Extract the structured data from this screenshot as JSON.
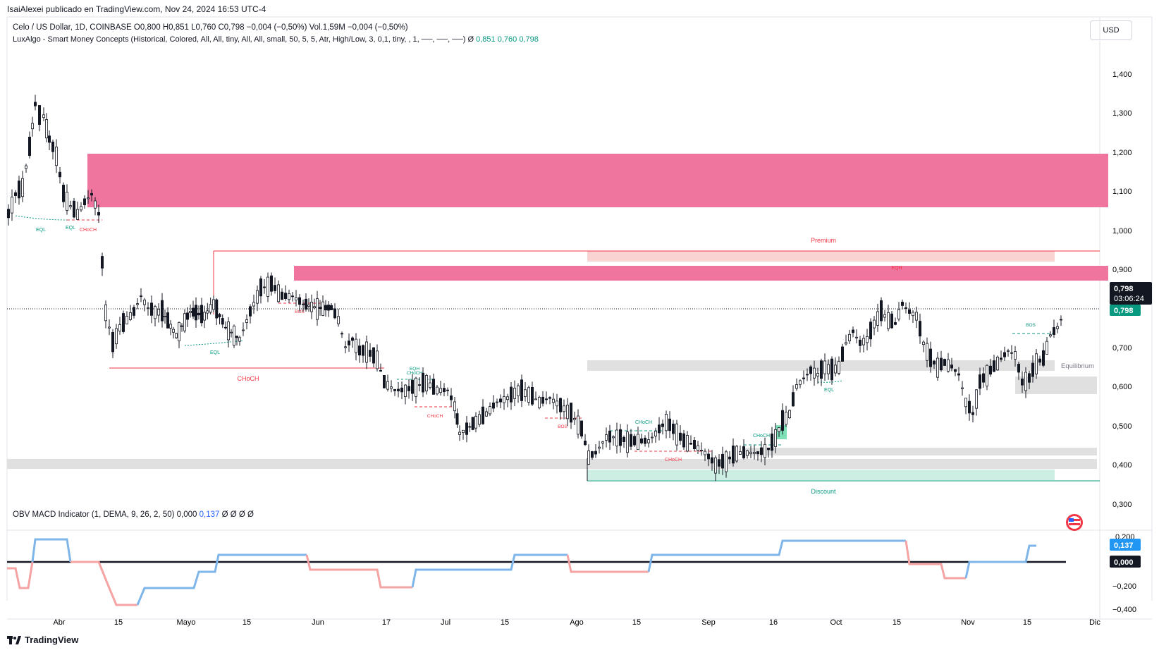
{
  "header": {
    "published": "IsaiAlexei publicado en TradingView.com, Nov 24, 2024 16:53 UTC-4",
    "symbol_line": "Celo / US Dollar, 1D, COINBASE  O0,800  H0,851  L0,760  C0,798  −0,004 (−0,50%)  Vol.1,59M  −0,004 (−0,50%)",
    "indicator_name": "LuxAlgo - Smart Money Concepts (Historical, Colored, All, All, tiny, All, All, small, 50, 5, 5, Atr, High/Low, 3, 0,1, tiny, , 1, ──, ──, ──)  Ø",
    "indicator_values": [
      "0,851",
      "0,760",
      "0,798"
    ],
    "currency_button": "USD"
  },
  "price_axis": {
    "ticks": [
      "1,400",
      "1,300",
      "1,200",
      "1,100",
      "1,000",
      "0,900",
      "0,800",
      "0,700",
      "0,600",
      "0,500",
      "0,400",
      "0,300"
    ],
    "last_price": "0,798",
    "countdown": "03:06:24",
    "close_badge": "0,798"
  },
  "time_axis": {
    "ticks": [
      "Abr",
      "15",
      "Mayo",
      "15",
      "Jun",
      "17",
      "Jul",
      "15",
      "Ago",
      "15",
      "Sep",
      "16",
      "Oct",
      "15",
      "Nov",
      "15",
      "Dic"
    ]
  },
  "annotations": {
    "premium": "Premium",
    "discount": "Discount",
    "equilibrium": "Equilibrium",
    "labels": [
      "EQL",
      "EQL",
      "CHoCH",
      "CHoCH",
      "EQL",
      "BOS",
      "EQH",
      "CHoCH",
      "CHoCH",
      "BOS",
      "CHoCH",
      "CHoCH",
      "CHoCH",
      "EQL",
      "EQH",
      "BOS"
    ]
  },
  "obv_panel": {
    "name": "OBV MACD Indicator (1, DEMA, 9, 26, 2, 50)",
    "value1": "0,000",
    "value2": "0,137",
    "tail": "Ø  Ø  Ø  Ø",
    "axis_ticks": [
      "0,200",
      "0,137",
      "0,000",
      "−0,200",
      "−0,400"
    ],
    "badge_value": "0,137",
    "badge_zero": "0,000"
  },
  "footer": {
    "brand": "TradingView"
  },
  "colors": {
    "bear_ob": "#f0759e",
    "bull": "#089981",
    "bear": "#f23645",
    "obv_up": "#7fb6ea",
    "obv_down": "#f5a3a3"
  }
}
